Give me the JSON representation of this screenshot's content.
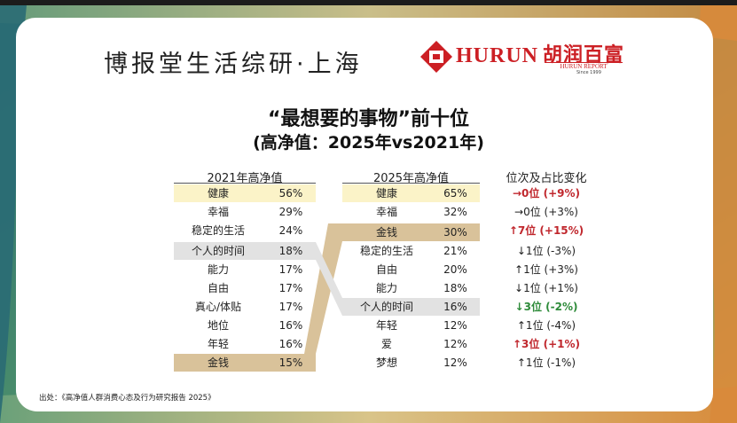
{
  "header": {
    "brand_title": "博报堂生活综研·上海",
    "logo_text": "HURUN",
    "logo_cn": "胡润百富",
    "logo_sub": "HURUN REPORT",
    "logo_since": "Since 1999"
  },
  "title": "“最想要的事物”前十位",
  "subtitle": "(高净值：2025年vs2021年)",
  "table": {
    "col_2021_header": "2021年高净值",
    "col_2025_header": "2025年高净值",
    "col_change_header": "位次及占比变化",
    "rows_2021": [
      {
        "item": "健康",
        "pct": "56%"
      },
      {
        "item": "幸福",
        "pct": "29%"
      },
      {
        "item": "稳定的生活",
        "pct": "24%"
      },
      {
        "item": "个人的时间",
        "pct": "18%"
      },
      {
        "item": "能力",
        "pct": "17%"
      },
      {
        "item": "自由",
        "pct": "17%"
      },
      {
        "item": "真心/体贴",
        "pct": "17%"
      },
      {
        "item": "地位",
        "pct": "16%"
      },
      {
        "item": "年轻",
        "pct": "16%"
      },
      {
        "item": "金钱",
        "pct": "15%"
      }
    ],
    "rows_2025": [
      {
        "item": "健康",
        "pct": "65%"
      },
      {
        "item": "幸福",
        "pct": "32%"
      },
      {
        "item": "金钱",
        "pct": "30%"
      },
      {
        "item": "稳定的生活",
        "pct": "21%"
      },
      {
        "item": "自由",
        "pct": "20%"
      },
      {
        "item": "能力",
        "pct": "18%"
      },
      {
        "item": "个人的时间",
        "pct": "16%"
      },
      {
        "item": "年轻",
        "pct": "12%"
      },
      {
        "item": "爱",
        "pct": "12%"
      },
      {
        "item": "梦想",
        "pct": "12%"
      }
    ],
    "changes": [
      {
        "text": "→0位 (+9%)",
        "style": "red"
      },
      {
        "text": "→0位 (+3%)",
        "style": "normal"
      },
      {
        "text": "↑7位 (+15%)",
        "style": "red"
      },
      {
        "text": "↓1位 (-3%)",
        "style": "normal"
      },
      {
        "text": "↑1位 (+3%)",
        "style": "normal"
      },
      {
        "text": "↓1位 (+1%)",
        "style": "normal"
      },
      {
        "text": "↓3位 (-2%)",
        "style": "green"
      },
      {
        "text": "↑1位 (-4%)",
        "style": "normal"
      },
      {
        "text": "↑3位 (+1%)",
        "style": "red"
      },
      {
        "text": "↑1位 (-1%)",
        "style": "normal"
      }
    ]
  },
  "source": "出处：《高净值人群消费心态及行为研究报告 2025》",
  "colors": {
    "accent_red": "#c0272d",
    "accent_green": "#2e8b3a",
    "highlight_yellow": "#fbf3c8",
    "highlight_gray": "#e2e2e2",
    "highlight_tan": "#d9c29a"
  }
}
